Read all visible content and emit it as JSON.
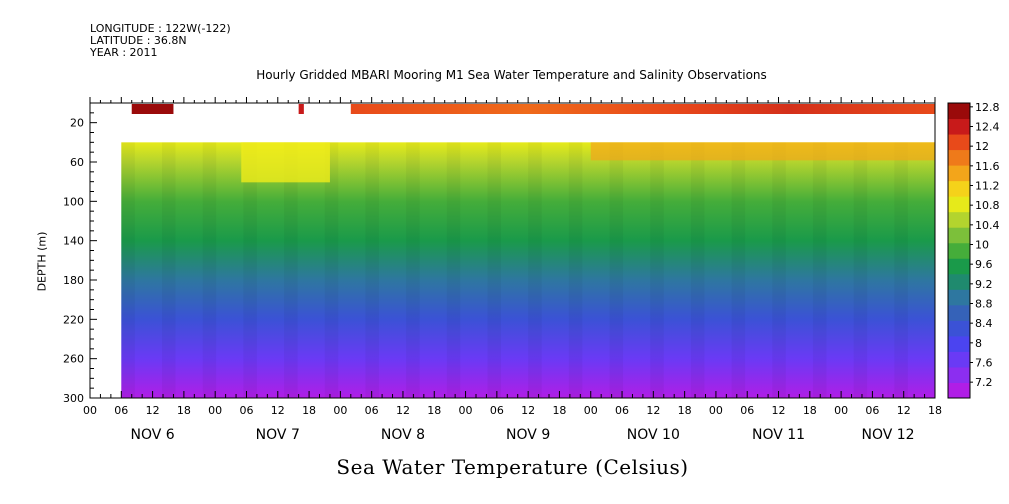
{
  "meta": {
    "longitude": "LONGITUDE : 122W(-122)",
    "latitude": "LATITUDE : 36.8N",
    "year": "YEAR : 2011"
  },
  "title": "Hourly Gridded MBARI Mooring M1 Sea Water Temperature and Salinity Observations",
  "subtitle": "Sea Water Temperature (Celsius)",
  "chart_data": {
    "type": "heatmap",
    "title": "Hourly Gridded MBARI Mooring M1 Sea Water Temperature and Salinity Observations",
    "xlabel": "",
    "ylabel": "DEPTH (m)",
    "x_range_hours": [
      0,
      162
    ],
    "x_start_label": "NOV 6 00",
    "ylim": [
      0,
      300
    ],
    "y_ticks": [
      20,
      60,
      100,
      140,
      180,
      220,
      260,
      300
    ],
    "x_hour_tick_labels": [
      "00",
      "06",
      "12",
      "18",
      "00",
      "06",
      "12",
      "18",
      "00",
      "06",
      "12",
      "18",
      "00",
      "06",
      "12",
      "18",
      "00",
      "06",
      "12",
      "18",
      "00",
      "06",
      "12",
      "18",
      "00",
      "06",
      "12",
      "18"
    ],
    "x_day_labels": [
      {
        "label": "NOV  6",
        "hour": 12
      },
      {
        "label": "NOV  7",
        "hour": 36
      },
      {
        "label": "NOV  8",
        "hour": 60
      },
      {
        "label": "NOV  9",
        "hour": 84
      },
      {
        "label": "NOV 10",
        "hour": 108
      },
      {
        "label": "NOV 11",
        "hour": 132
      },
      {
        "label": "NOV 12",
        "hour": 153
      }
    ],
    "colorbar": {
      "levels": [
        7.2,
        7.6,
        8,
        8.4,
        8.8,
        9.2,
        9.6,
        10,
        10.4,
        10.8,
        11.2,
        11.6,
        12,
        12.4,
        12.8
      ],
      "colors": [
        "#b01ee6",
        "#8c2ef0",
        "#6a3af5",
        "#4b44f0",
        "#3b52d6",
        "#3562b8",
        "#2e77a0",
        "#1f8a6e",
        "#1a9a4a",
        "#45ad3a",
        "#7cc03a",
        "#b3d42e",
        "#e6ea1a",
        "#f5d21a",
        "#f3a51a",
        "#ef7a1a",
        "#e84a1a",
        "#c81a1a",
        "#9a0a0a"
      ]
    },
    "surface_20m": [
      {
        "hours": [
          8,
          16
        ],
        "value": 12.8
      },
      {
        "hours": [
          40,
          41
        ],
        "value": 12.4
      },
      {
        "hours": [
          50,
          162
        ],
        "value": 12.1
      }
    ],
    "profile_deg_c": [
      {
        "depth": 40,
        "value": 10.9
      },
      {
        "depth": 60,
        "value": 10.6
      },
      {
        "depth": 100,
        "value": 10.0
      },
      {
        "depth": 140,
        "value": 9.6
      },
      {
        "depth": 180,
        "value": 9.1
      },
      {
        "depth": 220,
        "value": 8.6
      },
      {
        "depth": 260,
        "value": 8.0
      },
      {
        "depth": 300,
        "value": 7.4
      }
    ]
  }
}
